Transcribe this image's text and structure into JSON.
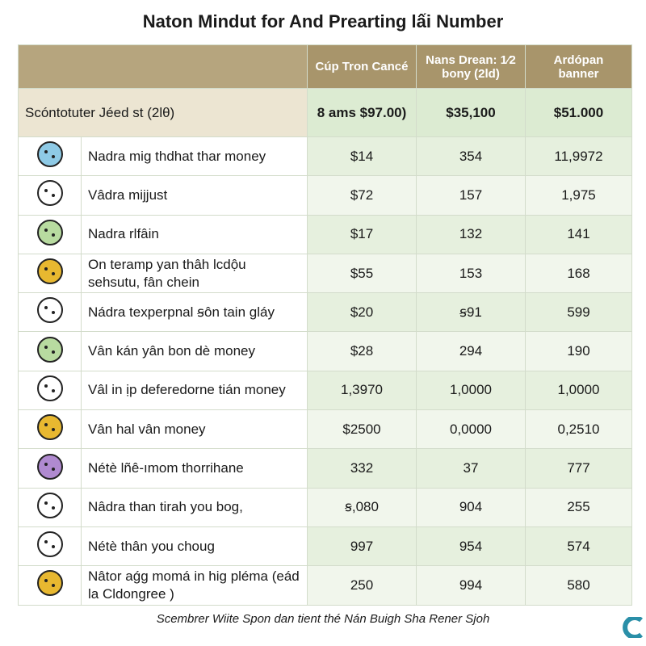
{
  "header": {
    "title": "Naton Mindut for And Prearting lấi Number"
  },
  "table": {
    "columns": [
      "Cúp Tron Cancé",
      "Nans Drean: 1⁄2 bony (2ld)",
      "Ardópan banner"
    ],
    "subheader": [
      "Scóntotuter Jéed st (2lθ)",
      "8 ams $97.00)",
      "$35,100",
      "$51.000"
    ],
    "rows": [
      [
        "Nadra mig thdhat thar money",
        "$14",
        "354",
        "11,9972"
      ],
      [
        "Vâdra mijjust",
        "$72",
        "157",
        "1,975"
      ],
      [
        "Nadra rlfâin",
        "$17",
        "132",
        "141"
      ],
      [
        "On teramp yan thâh lcdộu sehsutu, fân chein",
        "$55",
        "153",
        "168"
      ],
      [
        "Nádra texperpnal ꞩôn tain gláy",
        "$20",
        "ꞩ91",
        "599"
      ],
      [
        "Vân kán yân bon dè money",
        "$28",
        "294",
        "190"
      ],
      [
        "Vâl in ịp deferedorne tián money",
        "1,3970",
        "1,0000",
        "1,0000"
      ],
      [
        "Vân hal vân money",
        "$2500",
        "0,0000",
        "0,2510"
      ],
      [
        "Nétè lñê-ımom thorrihane",
        "332",
        "37",
        "777"
      ],
      [
        "Nâdra than tirah you bog,",
        "ꞩ,080",
        "904",
        "255"
      ],
      [
        "Nétè thân you choug",
        "997",
        "954",
        "574"
      ],
      [
        "Nâtor aǵg momá in hig pléma (eád la Cldongree )",
        "250",
        "994",
        "580"
      ]
    ]
  },
  "footer": {
    "caption": "Scembrer Wiite Spon dan tient thé Nán Buigh Sha Rener Sjoh"
  }
}
